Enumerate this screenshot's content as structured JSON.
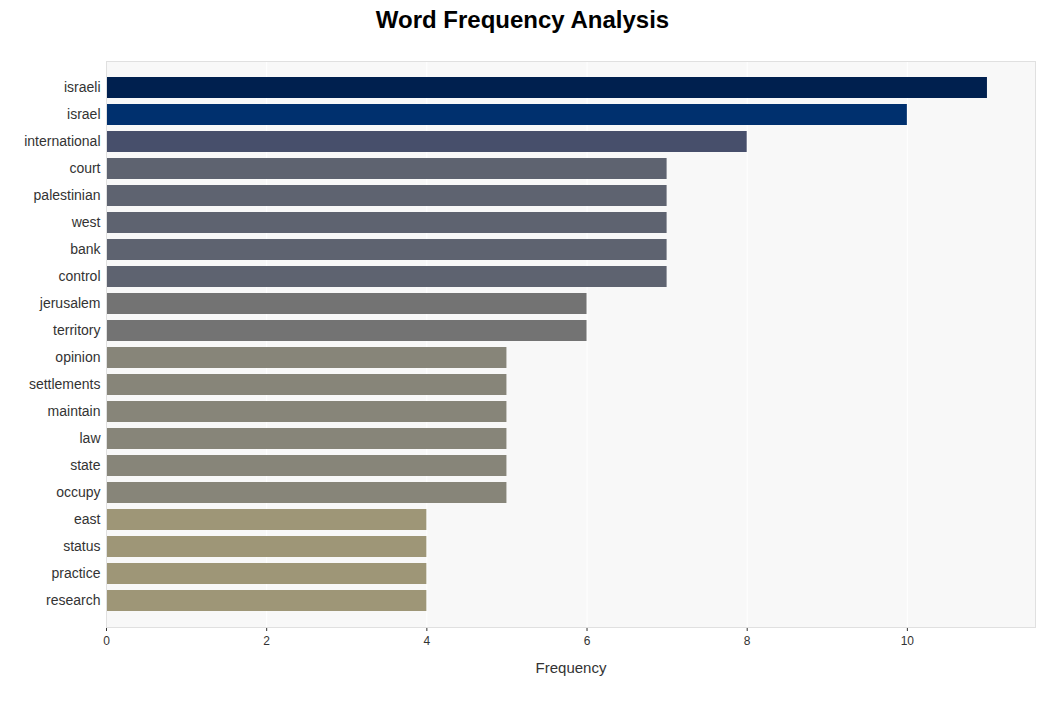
{
  "chart_data": {
    "type": "bar",
    "title": "Word Frequency Analysis",
    "x_label": "Frequency",
    "orientation": "horizontal",
    "categories": [
      "israeli",
      "israel",
      "international",
      "court",
      "palestinian",
      "west",
      "bank",
      "control",
      "jerusalem",
      "territory",
      "opinion",
      "settlements",
      "maintain",
      "law",
      "state",
      "occupy",
      "east",
      "status",
      "practice",
      "research"
    ],
    "values": [
      11,
      10,
      8,
      7,
      7,
      7,
      7,
      7,
      6,
      6,
      5,
      5,
      5,
      5,
      5,
      5,
      4,
      4,
      4,
      4
    ],
    "colors": [
      "#00204f",
      "#00306e",
      "#474f6b",
      "#5e6370",
      "#5e6370",
      "#5e6370",
      "#5e6370",
      "#5e6370",
      "#737373",
      "#737373",
      "#878579",
      "#878579",
      "#878579",
      "#878579",
      "#878579",
      "#878579",
      "#9e9677",
      "#9e9677",
      "#9e9677",
      "#9e9677"
    ],
    "xlim": [
      0,
      11.6
    ],
    "xticks": [
      0,
      2,
      4,
      6,
      8,
      10
    ],
    "grid": true
  }
}
